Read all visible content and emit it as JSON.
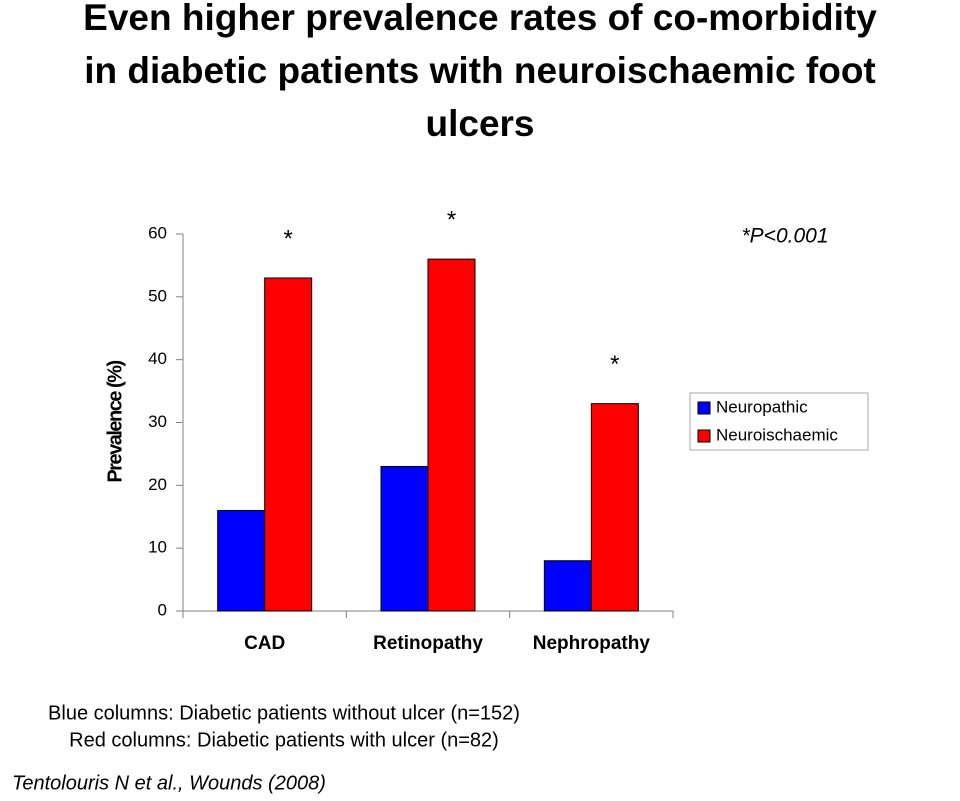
{
  "title": [
    "Even higher prevalence rates of co-morbidity",
    "in diabetic patients with neuroischaemic foot",
    "ulcers"
  ],
  "chart_data": {
    "type": "bar",
    "y_label": "Prevalence (%)",
    "categories": [
      "CAD",
      "Retinopathy",
      "Nephropathy"
    ],
    "series": [
      {
        "name": "Neuropathic",
        "color": "#0000ff",
        "values": [
          16,
          23,
          8
        ]
      },
      {
        "name": "Neuroischaemic",
        "color": "#ff0000",
        "values": [
          53,
          56,
          33
        ],
        "value_labels": [
          "*",
          "*",
          "*"
        ]
      }
    ],
    "ylim": [
      0,
      60
    ],
    "yticks": [
      0,
      10,
      20,
      30,
      40,
      50,
      60
    ],
    "annotation": "*P<0.001",
    "legend": "right",
    "grid": false
  },
  "footnotes": [
    "Blue columns: Diabetic patients without ulcer (n=152)",
    "Red columns: Diabetic patients with ulcer (n=82)"
  ],
  "citation": "Tentolouris N et al., Wounds (2008)"
}
